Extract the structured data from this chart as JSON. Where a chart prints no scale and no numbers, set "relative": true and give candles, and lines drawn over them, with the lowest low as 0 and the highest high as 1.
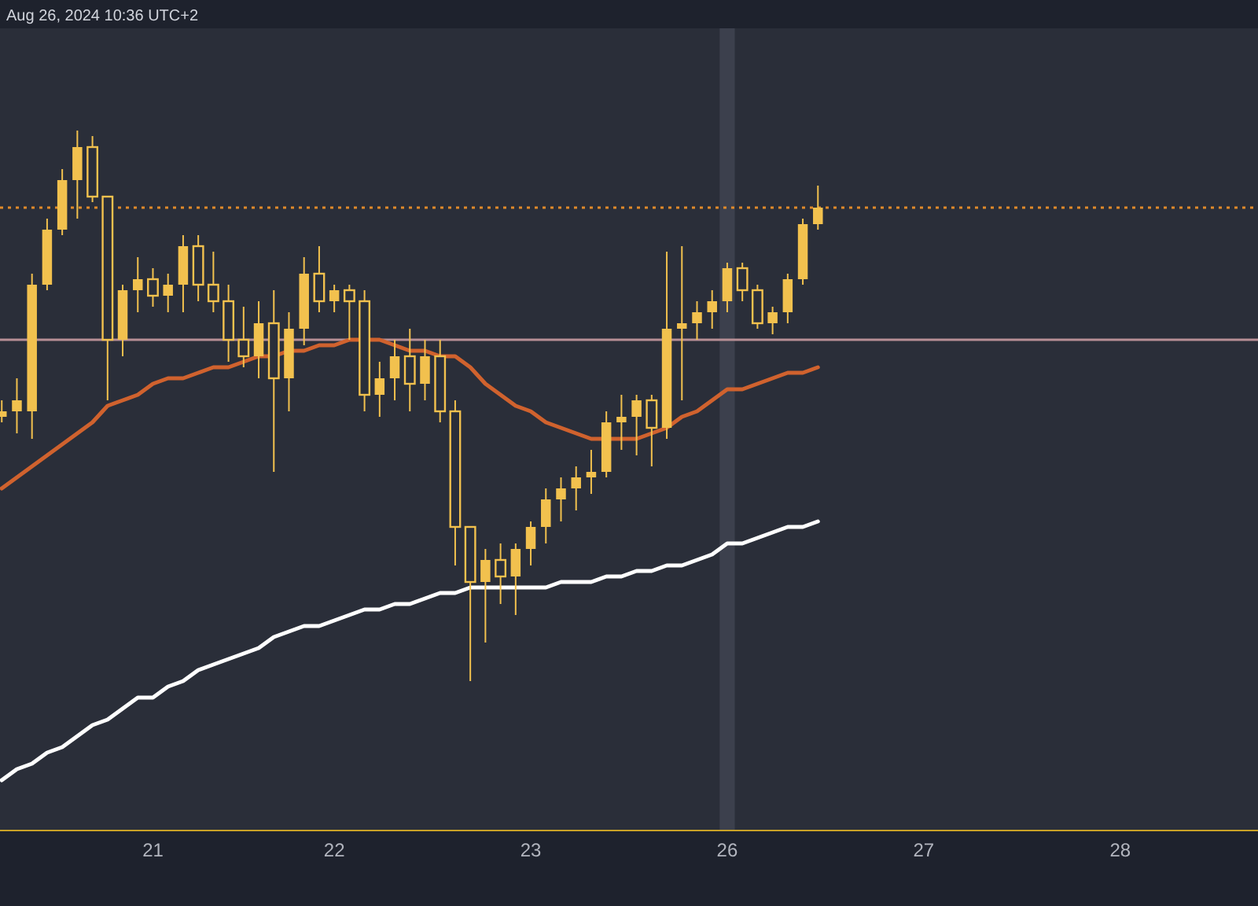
{
  "chart_data": {
    "type": "candlestick",
    "relative": true,
    "color": "#f2c14e",
    "annotations": [
      "Aug 26, 2024 10:36 UTC+2"
    ],
    "categories": [
      null,
      null,
      null,
      null,
      null,
      null,
      null,
      null,
      null,
      null,
      "21",
      null,
      null,
      null,
      null,
      null,
      null,
      null,
      null,
      null,
      null,
      null,
      "22",
      null,
      null,
      null,
      null,
      null,
      null,
      null,
      null,
      null,
      null,
      null,
      null,
      "23",
      null,
      null,
      null,
      null,
      null,
      null,
      null,
      null,
      null,
      null,
      null,
      null,
      "26",
      null,
      null,
      null,
      null,
      null,
      null,
      null,
      null,
      null,
      null,
      null,
      null,
      "27",
      null,
      null,
      null,
      null,
      null,
      null,
      null,
      null,
      null,
      null,
      null,
      null,
      "28",
      null,
      null,
      null,
      null,
      null,
      null,
      null,
      null,
      null
    ],
    "ohlc": [
      [
        0.48,
        0.51,
        0.47,
        0.49
      ],
      [
        0.49,
        0.55,
        0.45,
        0.51
      ],
      [
        0.49,
        0.74,
        0.44,
        0.72
      ],
      [
        0.72,
        0.84,
        0.71,
        0.82
      ],
      [
        0.82,
        0.93,
        0.81,
        0.91
      ],
      [
        0.91,
        1.0,
        0.84,
        0.97
      ],
      [
        0.97,
        0.99,
        0.87,
        0.88
      ],
      [
        0.88,
        0.88,
        0.51,
        0.62
      ],
      [
        0.62,
        0.72,
        0.59,
        0.71
      ],
      [
        0.71,
        0.77,
        0.67,
        0.73
      ],
      [
        0.73,
        0.75,
        0.68,
        0.7
      ],
      [
        0.7,
        0.74,
        0.67,
        0.72
      ],
      [
        0.72,
        0.81,
        0.67,
        0.79
      ],
      [
        0.79,
        0.81,
        0.69,
        0.72
      ],
      [
        0.72,
        0.78,
        0.67,
        0.69
      ],
      [
        0.69,
        0.72,
        0.58,
        0.62
      ],
      [
        0.62,
        0.68,
        0.57,
        0.59
      ],
      [
        0.59,
        0.69,
        0.55,
        0.65
      ],
      [
        0.65,
        0.71,
        0.38,
        0.55
      ],
      [
        0.55,
        0.67,
        0.49,
        0.64
      ],
      [
        0.64,
        0.77,
        0.61,
        0.74
      ],
      [
        0.74,
        0.79,
        0.67,
        0.69
      ],
      [
        0.69,
        0.72,
        0.67,
        0.71
      ],
      [
        0.71,
        0.72,
        0.62,
        0.69
      ],
      [
        0.69,
        0.71,
        0.49,
        0.52
      ],
      [
        0.52,
        0.58,
        0.48,
        0.55
      ],
      [
        0.55,
        0.62,
        0.51,
        0.59
      ],
      [
        0.59,
        0.64,
        0.49,
        0.54
      ],
      [
        0.54,
        0.62,
        0.51,
        0.59
      ],
      [
        0.59,
        0.62,
        0.47,
        0.49
      ],
      [
        0.49,
        0.51,
        0.21,
        0.28
      ],
      [
        0.28,
        0.28,
        0.0,
        0.18
      ],
      [
        0.18,
        0.24,
        0.07,
        0.22
      ],
      [
        0.22,
        0.25,
        0.14,
        0.19
      ],
      [
        0.19,
        0.25,
        0.12,
        0.24
      ],
      [
        0.24,
        0.29,
        0.21,
        0.28
      ],
      [
        0.28,
        0.35,
        0.25,
        0.33
      ],
      [
        0.33,
        0.37,
        0.29,
        0.35
      ],
      [
        0.35,
        0.39,
        0.31,
        0.37
      ],
      [
        0.37,
        0.42,
        0.34,
        0.38
      ],
      [
        0.38,
        0.49,
        0.37,
        0.47
      ],
      [
        0.47,
        0.52,
        0.42,
        0.48
      ],
      [
        0.48,
        0.52,
        0.41,
        0.51
      ],
      [
        0.51,
        0.52,
        0.39,
        0.46
      ],
      [
        0.46,
        0.78,
        0.44,
        0.64
      ],
      [
        0.64,
        0.79,
        0.51,
        0.65
      ],
      [
        0.65,
        0.69,
        0.62,
        0.67
      ],
      [
        0.67,
        0.71,
        0.64,
        0.69
      ],
      [
        0.69,
        0.76,
        0.67,
        0.75
      ],
      [
        0.75,
        0.76,
        0.69,
        0.71
      ],
      [
        0.71,
        0.72,
        0.64,
        0.65
      ],
      [
        0.65,
        0.68,
        0.63,
        0.67
      ],
      [
        0.67,
        0.74,
        0.65,
        0.73
      ],
      [
        0.73,
        0.84,
        0.72,
        0.83
      ],
      [
        0.83,
        0.9,
        0.82,
        0.86
      ],
      null,
      null,
      null,
      null,
      null,
      null,
      null,
      null,
      null,
      null,
      null,
      null,
      null,
      null,
      null,
      null,
      null,
      null,
      null,
      null,
      null,
      null,
      null,
      null,
      null,
      null,
      null,
      null,
      null
    ],
    "series": [
      {
        "type": "line",
        "color": "#d0622e",
        "values": [
          0.35,
          0.37,
          0.39,
          0.41,
          0.43,
          0.45,
          0.47,
          0.5,
          0.51,
          0.52,
          0.54,
          0.55,
          0.55,
          0.56,
          0.57,
          0.57,
          0.58,
          0.59,
          0.59,
          0.6,
          0.6,
          0.61,
          0.61,
          0.62,
          0.62,
          0.62,
          0.61,
          0.6,
          0.6,
          0.59,
          0.59,
          0.57,
          0.54,
          0.52,
          0.5,
          0.49,
          0.47,
          0.46,
          0.45,
          0.44,
          0.44,
          0.44,
          0.44,
          0.45,
          0.46,
          0.48,
          0.49,
          0.51,
          0.53,
          0.53,
          0.54,
          0.55,
          0.56,
          0.56,
          0.57,
          null,
          null,
          null,
          null,
          null,
          null,
          null,
          null,
          null,
          null,
          null,
          null,
          null,
          null,
          null,
          null,
          null,
          null,
          null,
          null,
          null,
          null,
          null,
          null,
          null,
          null,
          null,
          null,
          null
        ]
      },
      {
        "type": "line",
        "color": "#ffffff",
        "values": [
          -0.18,
          -0.16,
          -0.15,
          -0.13,
          -0.12,
          -0.1,
          -0.08,
          -0.07,
          -0.05,
          -0.03,
          -0.03,
          -0.01,
          0.0,
          0.02,
          0.03,
          0.04,
          0.05,
          0.06,
          0.08,
          0.09,
          0.1,
          0.1,
          0.11,
          0.12,
          0.13,
          0.13,
          0.14,
          0.14,
          0.15,
          0.16,
          0.16,
          0.17,
          0.17,
          0.17,
          0.17,
          0.17,
          0.17,
          0.18,
          0.18,
          0.18,
          0.19,
          0.19,
          0.2,
          0.2,
          0.21,
          0.21,
          0.22,
          0.23,
          0.25,
          0.25,
          0.26,
          0.27,
          0.28,
          0.28,
          0.29,
          null,
          null,
          null,
          null,
          null,
          null,
          null,
          null,
          null,
          null,
          null,
          null,
          null,
          null,
          null,
          null,
          null,
          null,
          null,
          null,
          null,
          null,
          null,
          null,
          null,
          null,
          null,
          null,
          null
        ]
      }
    ],
    "ref_lines": [
      {
        "axis": "y",
        "value": 0.62,
        "color": "#b88f96",
        "line_style": "solid"
      },
      {
        "axis": "y",
        "value": 0.86,
        "color": "#e08a2a",
        "line_style": "dotted"
      }
    ],
    "bands": [
      {
        "axis": "x",
        "from": "26",
        "to": "26",
        "color": "#3c404d"
      }
    ]
  }
}
